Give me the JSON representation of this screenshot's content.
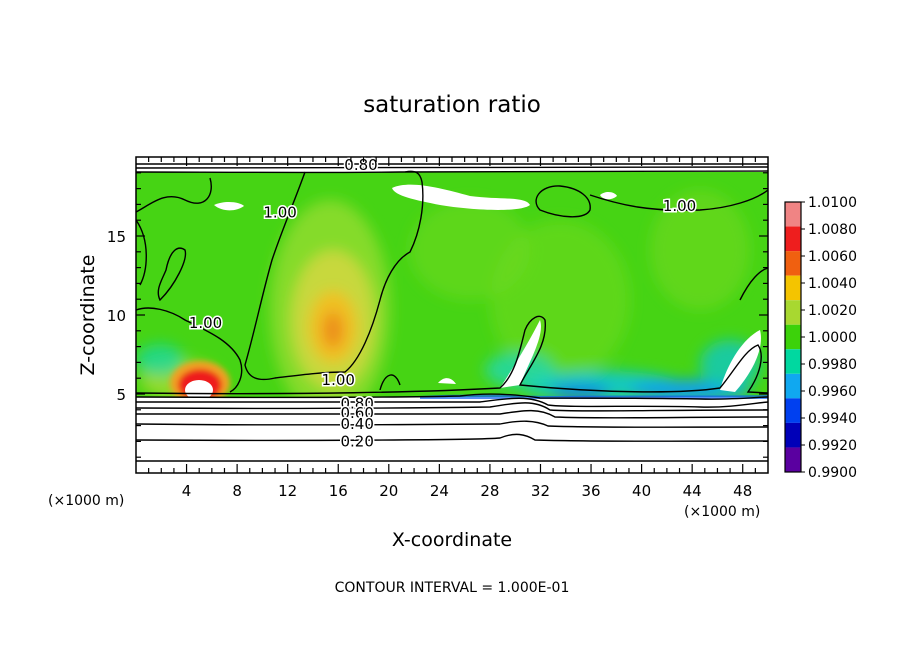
{
  "chart_data": {
    "type": "heatmap",
    "title": "saturation ratio",
    "xlabel": "X-coordinate",
    "ylabel": "Z-coordinate",
    "x_unit": "(×1000 m)",
    "z_unit": "(×1000 m)",
    "xlim": [
      0,
      50
    ],
    "zlim": [
      0,
      20
    ],
    "x_ticks": [
      "4",
      "8",
      "12",
      "16",
      "20",
      "24",
      "28",
      "32",
      "36",
      "40",
      "44",
      "48"
    ],
    "z_ticks": [
      "5",
      "10",
      "15"
    ],
    "footer": "CONTOUR INTERVAL = 1.000E-01",
    "colorbar": {
      "labels": [
        "1.0100",
        "1.0080",
        "1.0060",
        "1.0040",
        "1.0020",
        "1.0000",
        "0.9980",
        "0.9960",
        "0.9940",
        "0.9920",
        "0.9900"
      ],
      "colors": [
        "#f08484",
        "#ee1e1e",
        "#f06010",
        "#f4c400",
        "#a8d830",
        "#3cd20a",
        "#00d8a0",
        "#10a8f0",
        "#0040f0",
        "#0000b8",
        "#5a00a0"
      ]
    },
    "contour_labels": [
      {
        "text": "0.80",
        "x": 17.8,
        "z": 19.5
      },
      {
        "text": "1.00",
        "x": 11.4,
        "z": 16.5
      },
      {
        "text": "1.00",
        "x": 43.0,
        "z": 16.9
      },
      {
        "text": "1.00",
        "x": 5.5,
        "z": 9.5
      },
      {
        "text": "1.00",
        "x": 16.0,
        "z": 5.9
      },
      {
        "text": "0.80",
        "x": 17.5,
        "z": 4.4
      },
      {
        "text": "0.60",
        "x": 17.5,
        "z": 3.8
      },
      {
        "text": "0.40",
        "x": 17.5,
        "z": 3.1
      },
      {
        "text": "0.20",
        "x": 17.5,
        "z": 2.0
      }
    ]
  }
}
